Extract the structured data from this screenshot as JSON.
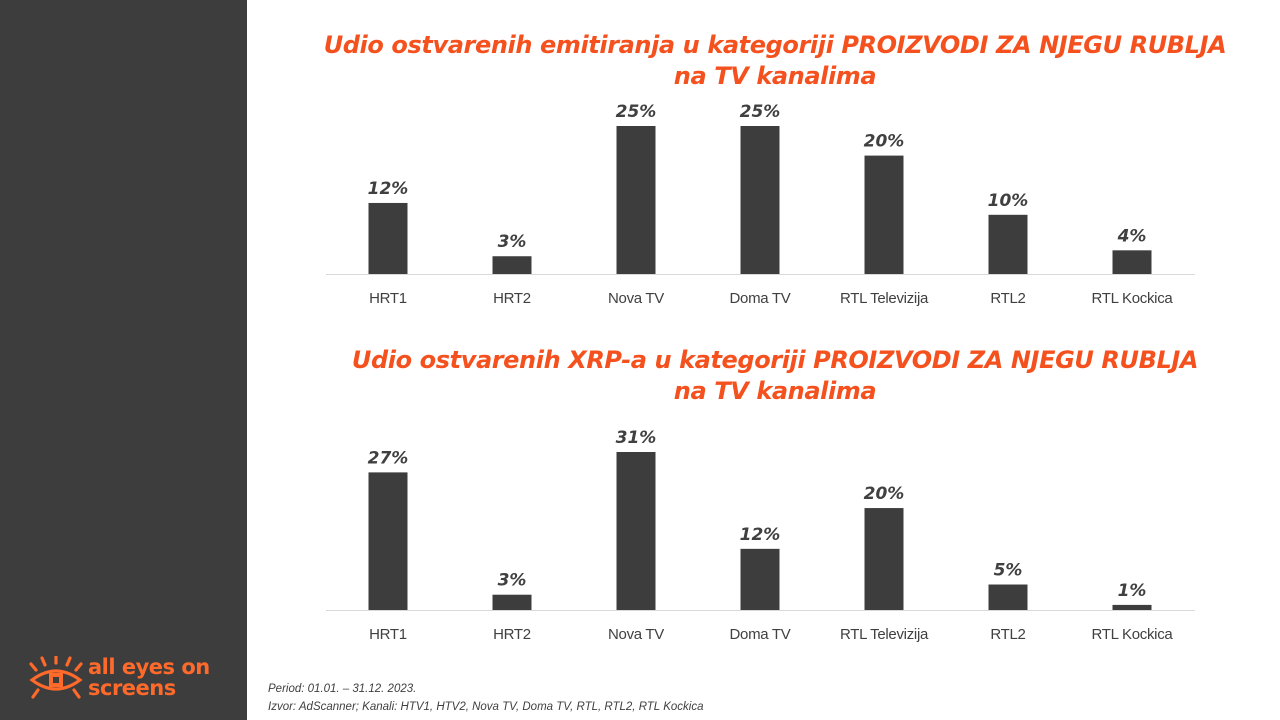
{
  "logo": {
    "line1": "all eyes on",
    "line2": "screens",
    "icon": "eye-logo-icon",
    "color": "#ff6a2b"
  },
  "colors": {
    "sidebar": "#3d3d3d",
    "bar": "#3d3d3d",
    "title": "#f4511e",
    "axis": "#d9d9d9"
  },
  "chart_data": [
    {
      "type": "bar",
      "title_line1": "Udio ostvarenih emitiranja u kategoriji PROIZVODI ZA NJEGU RUBLJA",
      "title_line2": "na TV kanalima",
      "categories": [
        "HRT1",
        "HRT2",
        "Nova TV",
        "Doma TV",
        "RTL Televizija",
        "RTL2",
        "RTL Kockica"
      ],
      "values": [
        12,
        3,
        25,
        25,
        20,
        10,
        4
      ],
      "labels": [
        "12%",
        "3%",
        "25%",
        "25%",
        "20%",
        "10%",
        "4%"
      ],
      "ylim": [
        0,
        25
      ],
      "grid": false,
      "legend": false
    },
    {
      "type": "bar",
      "title_line1": "Udio ostvarenih XRP-a u kategoriji PROIZVODI ZA NJEGU RUBLJA",
      "title_line2": "na TV kanalima",
      "categories": [
        "HRT1",
        "HRT2",
        "Nova TV",
        "Doma TV",
        "RTL Televizija",
        "RTL2",
        "RTL Kockica"
      ],
      "values": [
        27,
        3,
        31,
        12,
        20,
        5,
        1
      ],
      "labels": [
        "27%",
        "3%",
        "31%",
        "12%",
        "20%",
        "5%",
        "1%"
      ],
      "ylim": [
        0,
        31
      ],
      "grid": false,
      "legend": false
    }
  ],
  "footer": {
    "period": "Period: 01.01. – 31.12. 2023.",
    "source": "Izvor: AdScanner; Kanali: HTV1, HTV2, Nova TV, Doma TV, RTL, RTL2, RTL Kockica"
  }
}
